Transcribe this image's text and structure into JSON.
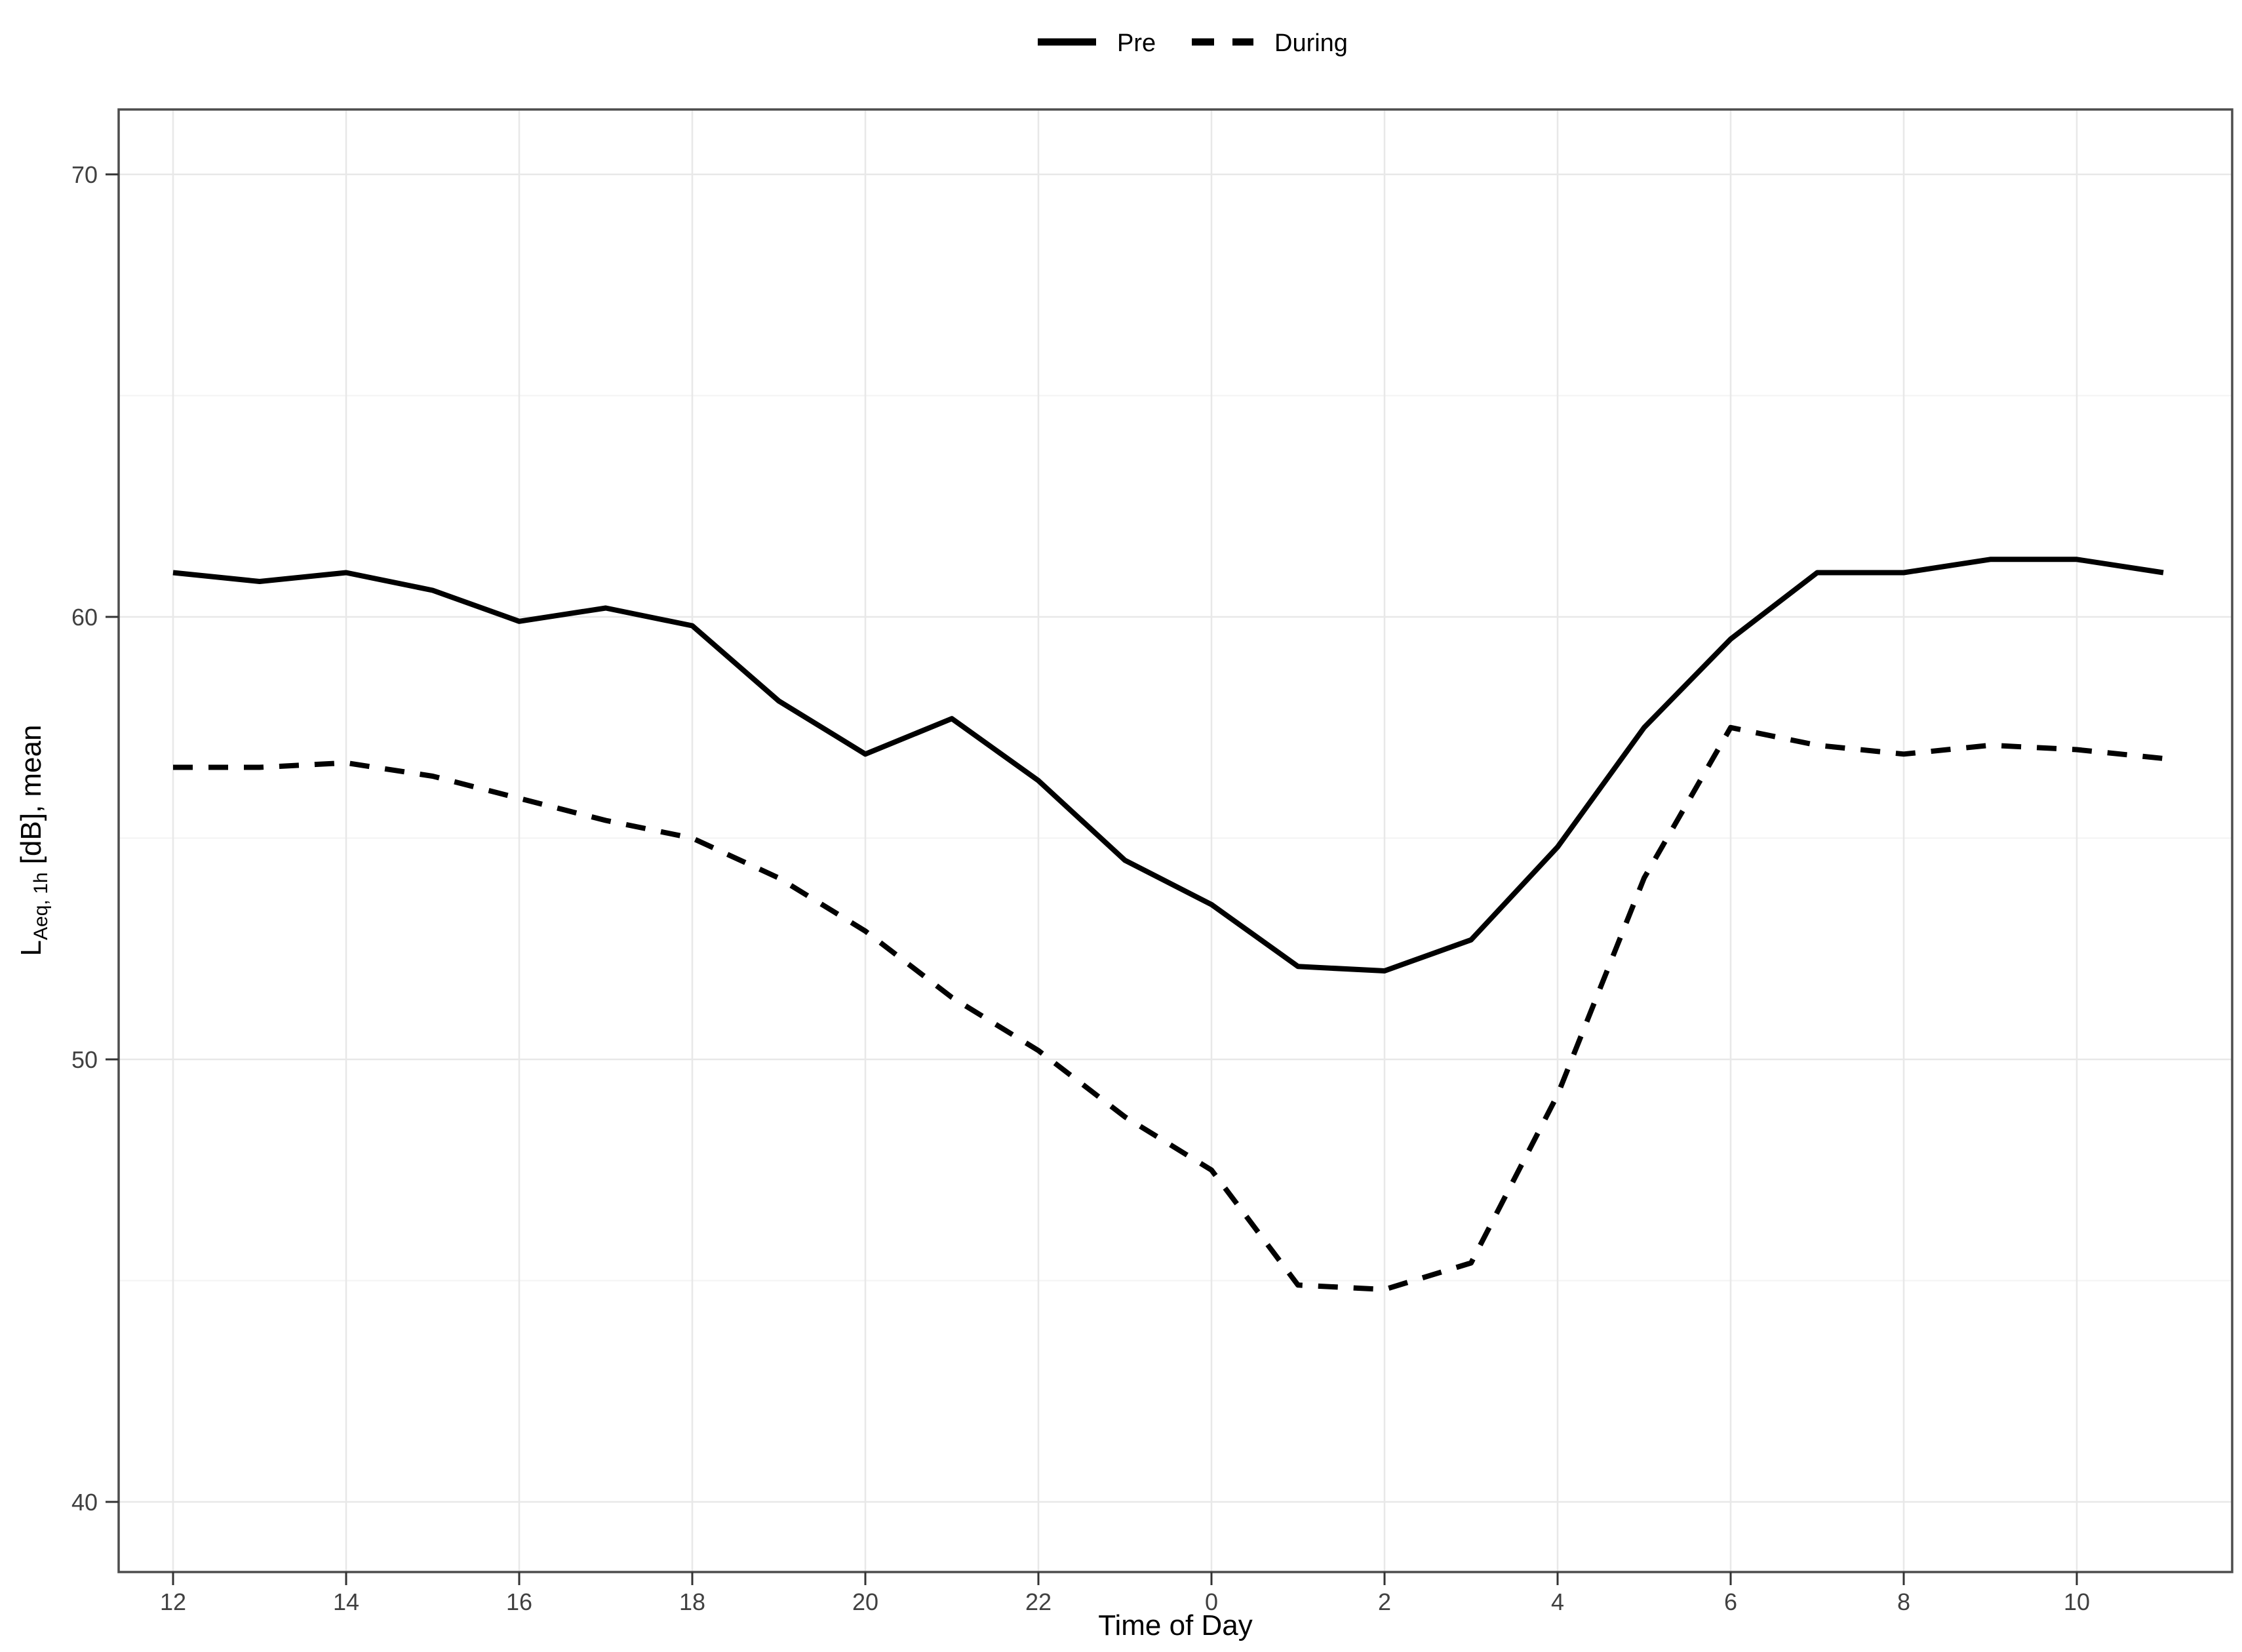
{
  "chart_data": {
    "type": "line",
    "title": "",
    "xlabel": "Time of Day",
    "ylabel_main": "L",
    "ylabel_sub": "Aeq, 1h",
    "ylabel_rest": " [dB], mean",
    "x_categories": [
      "12",
      "13",
      "14",
      "15",
      "16",
      "17",
      "18",
      "19",
      "20",
      "21",
      "22",
      "23",
      "0",
      "1",
      "2",
      "3",
      "4",
      "5",
      "6",
      "7",
      "8",
      "9",
      "10",
      "11"
    ],
    "x_tick_labels": [
      "12",
      "14",
      "16",
      "18",
      "20",
      "22",
      "0",
      "2",
      "4",
      "6",
      "8",
      "10"
    ],
    "y_ticks": [
      40,
      50,
      60,
      70
    ],
    "y_minor_ticks": [
      45,
      55,
      65
    ],
    "ylim": [
      38.5,
      71.5
    ],
    "grid": "light-gray horizontal major+minor, vertical at even hours",
    "legend_position": "top-center",
    "line_color": "#000000",
    "series": [
      {
        "name": "Pre",
        "style": "solid",
        "color": "#000000",
        "values": [
          61.0,
          60.8,
          61.0,
          60.6,
          59.9,
          60.2,
          59.8,
          58.1,
          56.9,
          57.7,
          56.3,
          54.5,
          53.5,
          52.1,
          52.0,
          52.7,
          54.8,
          57.5,
          59.5,
          61.0,
          61.0,
          61.3,
          61.3,
          61.0
        ]
      },
      {
        "name": "During",
        "style": "dashed",
        "color": "#000000",
        "values": [
          56.6,
          56.6,
          56.7,
          56.4,
          55.9,
          55.4,
          55.0,
          54.1,
          52.9,
          51.4,
          50.2,
          48.7,
          47.5,
          44.9,
          44.8,
          45.4,
          49.2,
          54.1,
          57.5,
          57.1,
          56.9,
          57.1,
          57.0,
          56.8
        ]
      }
    ]
  }
}
